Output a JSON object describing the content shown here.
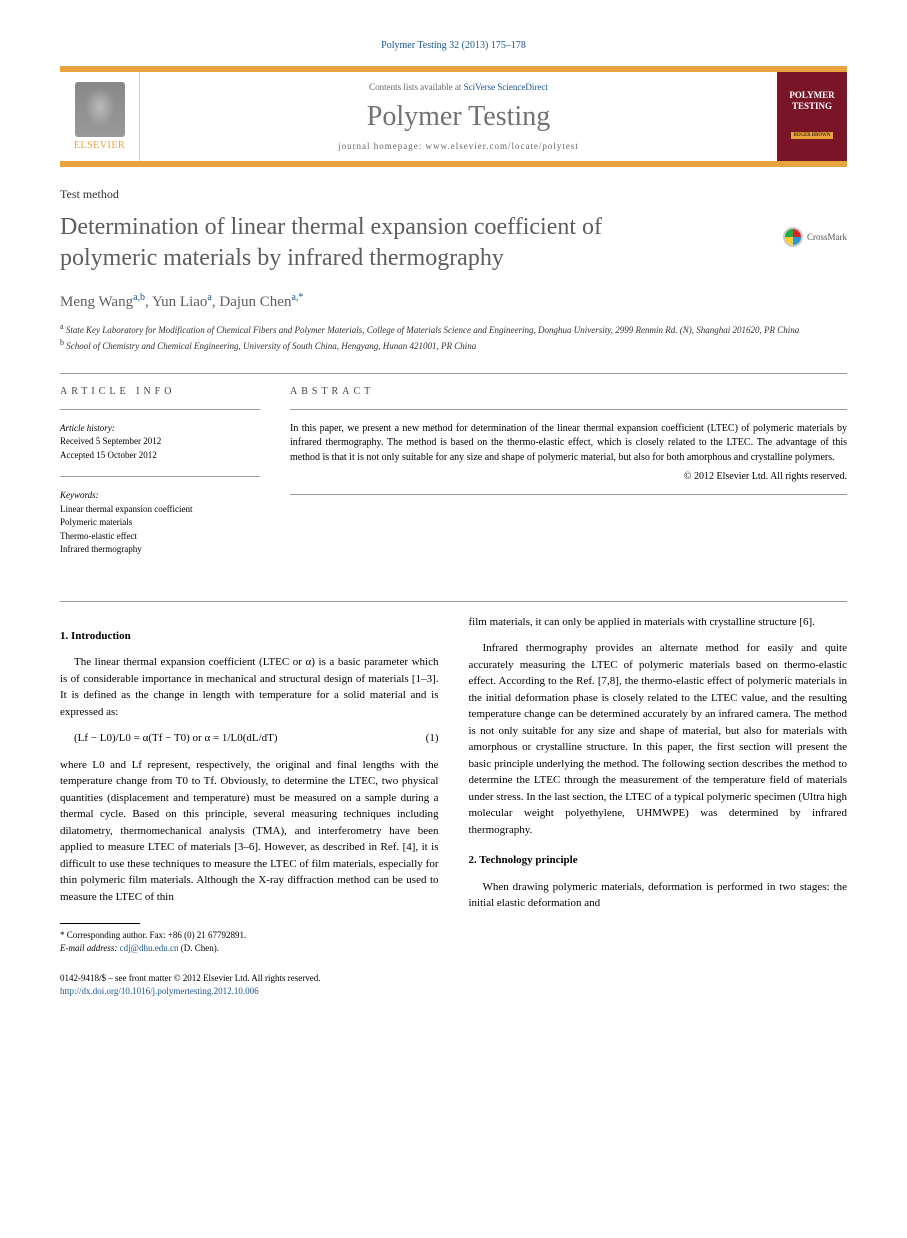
{
  "journal_ref": "Polymer Testing 32 (2013) 175–178",
  "header": {
    "contents_prefix": "Contents lists available at ",
    "contents_link": "SciVerse ScienceDirect",
    "journal_name": "Polymer Testing",
    "homepage_prefix": "journal homepage: ",
    "homepage_url": "www.elsevier.com/locate/polytest",
    "publisher": "ELSEVIER",
    "cover_title": "POLYMER TESTING",
    "cover_editor": "ROGER BROWN"
  },
  "article_type": "Test method",
  "title": "Determination of linear thermal expansion coefficient of polymeric materials by infrared thermography",
  "crossmark_label": "CrossMark",
  "authors_html": "Meng Wang|a,b|, Yun Liao|a|, Dajun Chen|a,*",
  "authors": [
    {
      "name": "Meng Wang",
      "sup": "a,b"
    },
    {
      "name": "Yun Liao",
      "sup": "a"
    },
    {
      "name": "Dajun Chen",
      "sup": "a,*"
    }
  ],
  "affiliations": [
    {
      "sup": "a",
      "text": "State Key Laboratory for Modification of Chemical Fibers and Polymer Materials, College of Materials Science and Engineering, Donghua University, 2999 Renmin Rd. (N), Shanghai 201620, PR China"
    },
    {
      "sup": "b",
      "text": "School of Chemistry and Chemical Engineering, University of South China, Hengyang, Hunan 421001, PR China"
    }
  ],
  "info": {
    "label": "ARTICLE INFO",
    "history_label": "Article history:",
    "received": "Received 5 September 2012",
    "accepted": "Accepted 15 October 2012",
    "keywords_label": "Keywords:",
    "keywords": [
      "Linear thermal expansion coefficient",
      "Polymeric materials",
      "Thermo-elastic effect",
      "Infrared thermography"
    ]
  },
  "abstract": {
    "label": "ABSTRACT",
    "text": "In this paper, we present a new method for determination of the linear thermal expansion coefficient (LTEC) of polymeric materials by infrared thermography. The method is based on the thermo-elastic effect, which is closely related to the LTEC. The advantage of this method is that it is not only suitable for any size and shape of polymeric material, but also for both amorphous and crystalline polymers.",
    "copyright": "© 2012 Elsevier Ltd. All rights reserved."
  },
  "body": {
    "h1": "1. Introduction",
    "p1": "The linear thermal expansion coefficient (LTEC or α) is a basic parameter which is of considerable importance in mechanical and structural design of materials [1–3]. It is defined as the change in length with temperature for a solid material and is expressed as:",
    "eq1": "(Lf − L0)/L0 = α(Tf − T0)   or   α = 1/L0(dL/dT)",
    "eq1_num": "(1)",
    "p2": "where L0 and Lf represent, respectively, the original and final lengths with the temperature change from T0 to Tf. Obviously, to determine the LTEC, two physical quantities (displacement and temperature) must be measured on a sample during a thermal cycle. Based on this principle, several measuring techniques including dilatometry, thermomechanical analysis (TMA), and interferometry have been applied to measure LTEC of materials [3–6]. However, as described in Ref. [4], it is difficult to use these techniques to measure the LTEC of film materials, especially for thin polymeric film materials. Although the X-ray diffraction method can be used to measure the LTEC of thin",
    "p3": "film materials, it can only be applied in materials with crystalline structure [6].",
    "p4": "Infrared thermography provides an alternate method for easily and quite accurately measuring the LTEC of polymeric materials based on thermo-elastic effect. According to the Ref. [7,8], the thermo-elastic effect of polymeric materials in the initial deformation phase is closely related to the LTEC value, and the resulting temperature change can be determined accurately by an infrared camera. The method is not only suitable for any size and shape of material, but also for materials with amorphous or crystalline structure. In this paper, the first section will present the basic principle underlying the method. The following section describes the method to determine the LTEC through the measurement of the temperature field of materials under stress. In the last section, the LTEC of a typical polymeric specimen (Ultra high molecular weight polyethylene, UHMWPE) was determined by infrared thermography.",
    "h2": "2. Technology principle",
    "p5": "When drawing polymeric materials, deformation is performed in two stages: the initial elastic deformation and"
  },
  "footnotes": {
    "corr": "* Corresponding author. Fax: +86 (0) 21 67792891.",
    "email_label": "E-mail address:",
    "email": "cdj@dhu.edu.cn",
    "email_suffix": "(D. Chen)."
  },
  "bottom": {
    "issn": "0142-9418/$ – see front matter © 2012 Elsevier Ltd. All rights reserved.",
    "doi": "http://dx.doi.org/10.1016/j.polymertesting.2012.10.006"
  },
  "colors": {
    "orange": "#e8a33d",
    "link": "#1a5490",
    "gray_title": "#5d5d5d",
    "cover_bg": "#7a1528"
  }
}
